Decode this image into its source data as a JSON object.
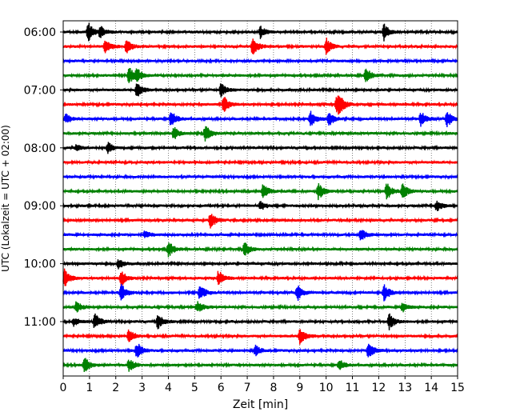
{
  "chart_data": {
    "type": "line",
    "title": "",
    "xlabel": "Zeit  [min]",
    "ylabel": "UTC (Lokalzeit = UTC + 02:00)",
    "xlim": [
      0,
      15
    ],
    "x_ticks": [
      0,
      1,
      2,
      3,
      4,
      5,
      6,
      7,
      8,
      9,
      10,
      11,
      12,
      13,
      14,
      15
    ],
    "y_tick_labels": [
      "06:00",
      "07:00",
      "08:00",
      "09:00",
      "10:00",
      "11:00"
    ],
    "trace_interval_min": 15,
    "grid": "vertical dotted lines at each minute",
    "legend": "none",
    "trace_colors": [
      "#000000",
      "#ff0000",
      "#0000ff",
      "#008000"
    ],
    "series": [
      {
        "start": "06:00",
        "color": "#000000",
        "events": [
          [
            0.95,
            1.0
          ],
          [
            1.4,
            0.6
          ],
          [
            7.5,
            0.6
          ],
          [
            12.2,
            0.9
          ]
        ]
      },
      {
        "start": "06:15",
        "color": "#ff0000",
        "events": [
          [
            1.6,
            0.9
          ],
          [
            2.4,
            0.7
          ],
          [
            7.2,
            1.0
          ],
          [
            10.0,
            0.9
          ]
        ]
      },
      {
        "start": "06:30",
        "color": "#0000ff",
        "events": []
      },
      {
        "start": "06:45",
        "color": "#008000",
        "events": [
          [
            2.5,
            0.9
          ],
          [
            2.8,
            0.6
          ],
          [
            11.5,
            0.9
          ]
        ]
      },
      {
        "start": "07:00",
        "color": "#000000",
        "events": [
          [
            2.8,
            0.8
          ],
          [
            6.0,
            0.7
          ]
        ]
      },
      {
        "start": "07:15",
        "color": "#ff0000",
        "events": [
          [
            6.1,
            0.9
          ],
          [
            10.4,
            0.9
          ],
          [
            10.5,
            0.7
          ]
        ]
      },
      {
        "start": "07:30",
        "color": "#0000ff",
        "events": [
          [
            0.1,
            0.5
          ],
          [
            4.1,
            0.9
          ],
          [
            9.4,
            0.9
          ],
          [
            10.1,
            0.8
          ],
          [
            13.6,
            0.8
          ],
          [
            14.6,
            0.9
          ]
        ]
      },
      {
        "start": "07:45",
        "color": "#008000",
        "events": [
          [
            4.2,
            0.7
          ],
          [
            5.4,
            0.9
          ]
        ]
      },
      {
        "start": "08:00",
        "color": "#000000",
        "events": [
          [
            0.5,
            0.3
          ],
          [
            1.7,
            0.6
          ]
        ]
      },
      {
        "start": "08:15",
        "color": "#ff0000",
        "events": []
      },
      {
        "start": "08:30",
        "color": "#0000ff",
        "events": []
      },
      {
        "start": "08:45",
        "color": "#008000",
        "events": [
          [
            7.6,
            0.8
          ],
          [
            9.7,
            0.9
          ],
          [
            12.3,
            0.9
          ],
          [
            12.9,
            0.9
          ]
        ]
      },
      {
        "start": "09:00",
        "color": "#000000",
        "events": [
          [
            7.5,
            0.5
          ],
          [
            14.2,
            0.6
          ]
        ]
      },
      {
        "start": "09:15",
        "color": "#ff0000",
        "events": [
          [
            5.6,
            0.9
          ]
        ]
      },
      {
        "start": "09:30",
        "color": "#0000ff",
        "events": [
          [
            3.1,
            0.4
          ],
          [
            11.3,
            0.7
          ]
        ]
      },
      {
        "start": "09:45",
        "color": "#008000",
        "events": [
          [
            4.0,
            0.9
          ],
          [
            6.9,
            0.8
          ]
        ]
      },
      {
        "start": "10:00",
        "color": "#000000",
        "events": [
          [
            2.1,
            0.5
          ]
        ]
      },
      {
        "start": "10:15",
        "color": "#ff0000",
        "events": [
          [
            0.05,
            1.0
          ],
          [
            2.2,
            0.9
          ],
          [
            5.9,
            0.9
          ]
        ]
      },
      {
        "start": "10:30",
        "color": "#0000ff",
        "events": [
          [
            2.2,
            0.9
          ],
          [
            5.2,
            0.9
          ],
          [
            8.9,
            0.9
          ],
          [
            12.2,
            0.9
          ]
        ]
      },
      {
        "start": "10:45",
        "color": "#008000",
        "events": [
          [
            0.5,
            0.6
          ],
          [
            5.1,
            0.6
          ],
          [
            12.9,
            0.5
          ]
        ]
      },
      {
        "start": "11:00",
        "color": "#000000",
        "events": [
          [
            0.4,
            0.4
          ],
          [
            1.2,
            0.9
          ],
          [
            3.6,
            0.8
          ],
          [
            12.4,
            0.8
          ]
        ]
      },
      {
        "start": "11:15",
        "color": "#ff0000",
        "events": [
          [
            2.5,
            0.8
          ],
          [
            9.0,
            0.9
          ]
        ]
      },
      {
        "start": "11:30",
        "color": "#0000ff",
        "events": [
          [
            2.8,
            0.9
          ],
          [
            7.3,
            0.6
          ],
          [
            11.6,
            0.9
          ]
        ]
      },
      {
        "start": "11:45",
        "color": "#008000",
        "events": [
          [
            0.8,
            0.9
          ],
          [
            2.5,
            0.7
          ],
          [
            10.5,
            0.6
          ]
        ]
      }
    ]
  }
}
